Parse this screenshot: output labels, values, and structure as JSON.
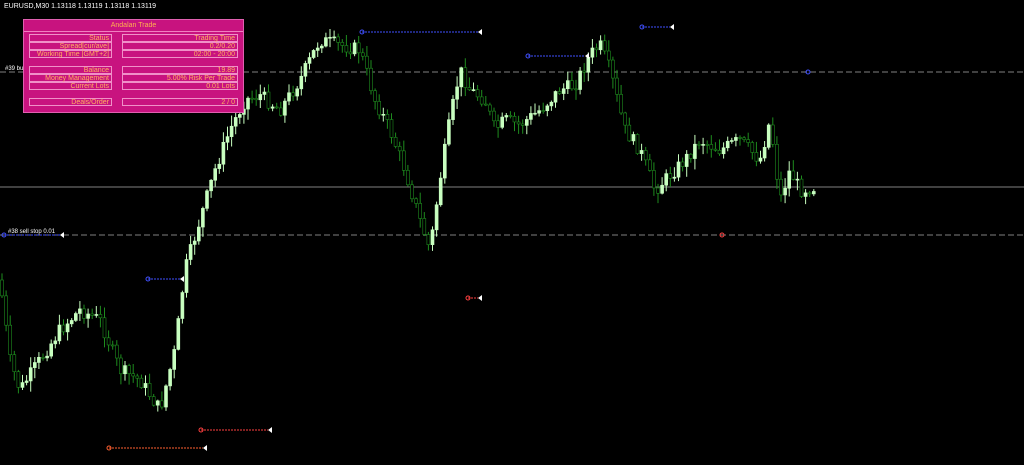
{
  "symbol_header": "EURUSD,M30  1.13118 1.13119 1.13118 1.13119",
  "panel": {
    "title": "Andalan Trade",
    "rows": [
      {
        "label": "Status",
        "value": "Trading Time"
      },
      {
        "label": "Spread[cur/ave]",
        "value": "0.2/0.20"
      },
      {
        "label": "Working Time [GMT+2]",
        "value": "02:00 - 20:00"
      },
      {
        "label": "Balance",
        "value": "19.89"
      },
      {
        "label": "Money Management",
        "value": "5.00% Risk Per Trade"
      },
      {
        "label": "Current Lots",
        "value": "0.01 Lots"
      },
      {
        "label": "Deals/Order",
        "value": "2 / 0"
      }
    ]
  },
  "labels": {
    "order_tag": "#39 bu",
    "sell_stop": "#38 sell stop 0.01"
  },
  "colors": {
    "bull": "#c8ffc0",
    "bear": "#1e8c1e",
    "panel": "#c8137f",
    "panel_text": "#ffb060",
    "level": "#808080"
  }
}
